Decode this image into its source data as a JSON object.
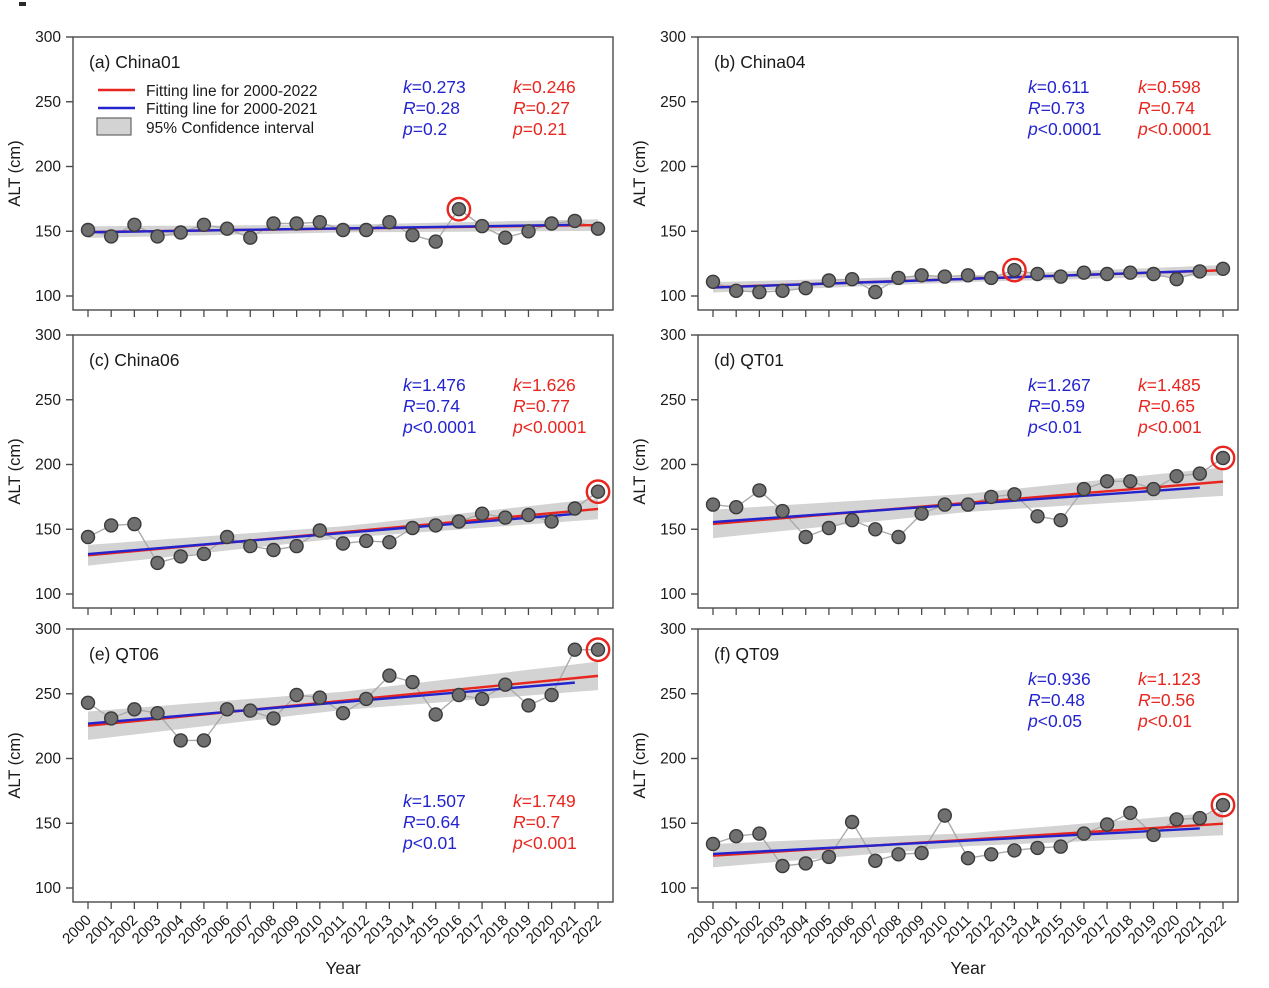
{
  "figure": {
    "ylabel": "ALT (cm)",
    "xlabel": "Year",
    "ylim": [
      100,
      300
    ],
    "yticks": [
      300,
      250,
      200,
      150,
      100
    ],
    "years": [
      2000,
      2001,
      2002,
      2003,
      2004,
      2005,
      2006,
      2007,
      2008,
      2009,
      2010,
      2011,
      2012,
      2013,
      2014,
      2015,
      2016,
      2017,
      2018,
      2019,
      2020,
      2021,
      2022
    ],
    "legend": {
      "items": [
        {
          "swatch": "red-line",
          "label": "Fitting line for 2000-2022"
        },
        {
          "swatch": "blue-line",
          "label": "Fitting line for 2000-2021"
        },
        {
          "swatch": "gray-box",
          "label": "95% Confidence interval"
        }
      ]
    },
    "colors": {
      "red": "#e8251e",
      "blue": "#2424cf",
      "ci_band": "#d3d3d3",
      "point_fill": "#707070",
      "point_edge": "#3a3a3a",
      "series_line": "#ababab",
      "axis": "#4a4a4a",
      "text": "#1a1a1a"
    }
  },
  "chart_data": [
    {
      "id": "a",
      "type": "scatter-line-fit",
      "title": "(a) China01",
      "site": "China01",
      "x_range": [
        2000,
        2022
      ],
      "values": [
        151,
        146,
        155,
        146,
        149,
        155,
        152,
        145,
        156,
        156,
        157,
        151,
        151,
        157,
        147,
        142,
        167,
        154,
        145,
        150,
        156,
        158,
        152
      ],
      "circled_year": 2016,
      "stats_blue": [
        "k=0.273",
        "R=0.28",
        "p=0.2"
      ],
      "stats_red": [
        "k=0.246",
        "R=0.27",
        "p=0.21"
      ],
      "stats_pos": "top",
      "ci_halfwidth": [
        3,
        4.5
      ],
      "has_legend": true
    },
    {
      "id": "b",
      "type": "scatter-line-fit",
      "title": "(b) China04",
      "site": "China04",
      "x_range": [
        2000,
        2022
      ],
      "values": [
        111,
        104,
        103,
        104,
        106,
        112,
        113,
        103,
        114,
        116,
        115,
        116,
        114,
        120,
        117,
        115,
        118,
        117,
        118,
        117,
        113,
        119,
        121
      ],
      "circled_year": 2013,
      "stats_blue": [
        "k=0.611",
        "R=0.73",
        "p<0.0001"
      ],
      "stats_red": [
        "k=0.598",
        "R=0.74",
        "p<0.0001"
      ],
      "stats_pos": "top",
      "ci_halfwidth": [
        2.5,
        4
      ],
      "has_legend": false
    },
    {
      "id": "c",
      "type": "scatter-line-fit",
      "title": "(c) China06",
      "site": "China06",
      "x_range": [
        2000,
        2022
      ],
      "values": [
        144,
        153,
        154,
        124,
        129,
        131,
        144,
        137,
        134,
        137,
        149,
        139,
        141,
        140,
        151,
        153,
        156,
        162,
        159,
        161,
        156,
        166,
        179
      ],
      "circled_year": 2022,
      "stats_blue": [
        "k=1.476",
        "R=0.74",
        "p<0.0001"
      ],
      "stats_red": [
        "k=1.626",
        "R=0.77",
        "p<0.0001"
      ],
      "stats_pos": "top",
      "ci_halfwidth": [
        4.5,
        8
      ],
      "has_legend": false
    },
    {
      "id": "d",
      "type": "scatter-line-fit",
      "title": "(d) QT01",
      "site": "QT01",
      "x_range": [
        2000,
        2022
      ],
      "values": [
        169,
        167,
        180,
        164,
        144,
        151,
        157,
        150,
        144,
        162,
        169,
        169,
        175,
        177,
        160,
        157,
        181,
        187,
        187,
        181,
        191,
        193,
        205
      ],
      "circled_year": 2022,
      "stats_blue": [
        "k=1.267",
        "R=0.59",
        "p<0.01"
      ],
      "stats_red": [
        "k=1.485",
        "R=0.65",
        "p<0.001"
      ],
      "stats_pos": "top",
      "ci_halfwidth": [
        7,
        11
      ],
      "has_legend": false
    },
    {
      "id": "e",
      "type": "scatter-line-fit",
      "title": "(e) QT06",
      "site": "QT06",
      "x_range": [
        2000,
        2022
      ],
      "values": [
        243,
        231,
        238,
        235,
        214,
        214,
        238,
        237,
        231,
        249,
        247,
        235,
        246,
        264,
        259,
        234,
        249,
        246,
        257,
        241,
        249,
        284,
        284
      ],
      "circled_year": 2022,
      "stats_blue": [
        "k=1.507",
        "R=0.64",
        "p<0.01"
      ],
      "stats_red": [
        "k=1.749",
        "R=0.7",
        "p<0.001"
      ],
      "stats_pos": "bottom",
      "ci_halfwidth": [
        7,
        11
      ],
      "has_legend": false
    },
    {
      "id": "f",
      "type": "scatter-line-fit",
      "title": "(f) QT09",
      "site": "QT09",
      "x_range": [
        2000,
        2022
      ],
      "values": [
        134,
        140,
        142,
        117,
        119,
        124,
        151,
        121,
        126,
        127,
        156,
        123,
        126,
        129,
        131,
        132,
        142,
        149,
        158,
        141,
        153,
        154,
        164
      ],
      "circled_year": 2022,
      "stats_blue": [
        "k=0.936",
        "R=0.48",
        "p<0.05"
      ],
      "stats_red": [
        "k=1.123",
        "R=0.56",
        "p<0.01"
      ],
      "stats_pos": "top",
      "ci_halfwidth": [
        5,
        9
      ],
      "has_legend": false
    }
  ]
}
